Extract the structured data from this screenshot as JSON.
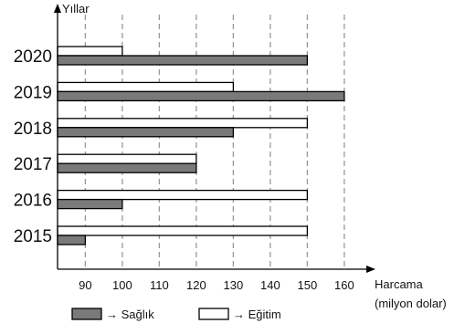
{
  "chart_data": {
    "type": "bar",
    "orientation": "horizontal",
    "ylabel": "Yıllar",
    "xlabel": "Harcama",
    "xlabel_unit": "(milyon dolar)",
    "categories": [
      "2020",
      "2019",
      "2018",
      "2017",
      "2016",
      "2015"
    ],
    "xticks": [
      90,
      100,
      110,
      120,
      130,
      140,
      150,
      160
    ],
    "xlim": [
      82.5,
      167
    ],
    "grid": "vertical dashed",
    "series": [
      {
        "name": "Eğitim",
        "color": "#ffffff",
        "values": [
          100,
          130,
          150,
          120,
          150,
          150
        ]
      },
      {
        "name": "Sağlık",
        "color": "#7a7a7a",
        "values": [
          150,
          160,
          130,
          120,
          100,
          90
        ]
      }
    ],
    "legend": {
      "placement": "bottom",
      "items": [
        {
          "series": "Sağlık",
          "label": "→ Sağlık"
        },
        {
          "series": "Eğitim",
          "label": "→ Eğitim"
        }
      ]
    }
  }
}
